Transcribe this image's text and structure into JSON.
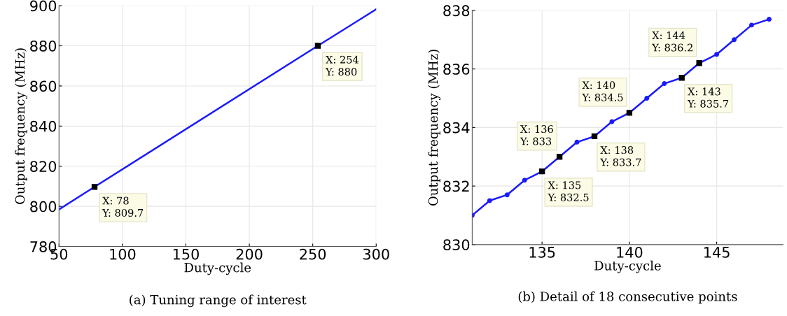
{
  "chart_data": [
    {
      "type": "line",
      "xlabel": "Duty-cycle",
      "ylabel": "Output frequency (MHz)",
      "x": [
        50,
        78,
        254,
        300
      ],
      "series": [
        {
          "color": "#1a1aff",
          "values": [
            798.5,
            809.7,
            880,
            898.2
          ]
        }
      ],
      "xlim": [
        50,
        300
      ],
      "ylim": [
        780,
        900
      ],
      "xticks": [
        50,
        100,
        150,
        200,
        250,
        300
      ],
      "yticks": [
        780,
        800,
        820,
        840,
        860,
        880,
        900
      ],
      "grid": true,
      "line_style": "solid",
      "annotations": [
        {
          "text": "X: 78\nY: 809.7",
          "x": 78,
          "y": 809.7
        },
        {
          "text": "X: 254\nY: 880",
          "x": 254,
          "y": 880
        },
        "(a) Tuning range of interest"
      ]
    },
    {
      "type": "line",
      "xlabel": "Duty-cycle",
      "ylabel": "Output frequency (MHz)",
      "x": [
        131,
        132,
        133,
        134,
        135,
        136,
        137,
        138,
        139,
        140,
        141,
        142,
        143,
        144,
        145,
        146,
        147,
        148
      ],
      "series": [
        {
          "color": "#1a1aff",
          "values": [
            831.0,
            831.5,
            831.7,
            832.2,
            832.5,
            833,
            833.5,
            833.7,
            834.2,
            834.5,
            835.0,
            835.5,
            835.7,
            836.2,
            836.5,
            837.0,
            837.5,
            837.7
          ]
        }
      ],
      "xlim": [
        131,
        148.8
      ],
      "ylim": [
        830,
        838
      ],
      "xticks": [
        135,
        140,
        145
      ],
      "yticks": [
        830,
        832,
        834,
        836,
        838
      ],
      "grid": true,
      "marker": "circle",
      "line_style": "solid",
      "annotations": [
        {
          "text": "X: 135\nY: 832.5",
          "x": 135,
          "y": 832.5
        },
        {
          "text": "X: 136\nY: 833",
          "x": 136,
          "y": 833
        },
        {
          "text": "X: 138\nY: 833.7",
          "x": 138,
          "y": 833.7
        },
        {
          "text": "X: 140\nY: 834.5",
          "x": 140,
          "y": 834.5
        },
        {
          "text": "X: 143\nY: 835.7",
          "x": 143,
          "y": 835.7
        },
        {
          "text": "X: 144\nY: 836.2",
          "x": 144,
          "y": 836.2
        },
        "(b) Detail of 18 consecutive points"
      ]
    }
  ]
}
